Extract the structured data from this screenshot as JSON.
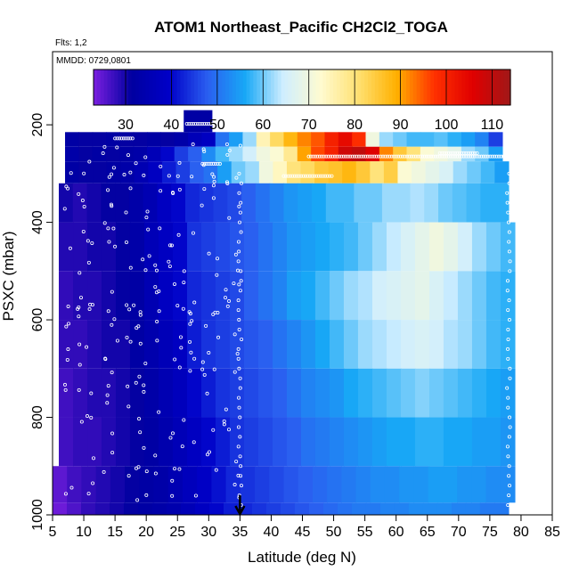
{
  "chart_data": {
    "type": "heatmap",
    "title": "ATOM1 Northeast_Pacific CH2Cl2_TOGA",
    "annotation_flights": "Flts: 1,2",
    "annotation_dates": "MMDD: 0729,0801",
    "xlabel": "Latitude (deg N)",
    "ylabel": "PSXC (mbar)",
    "xlim": [
      5,
      85
    ],
    "ylim": [
      1000,
      50
    ],
    "x_ticks": [
      "5",
      "10",
      "15",
      "20",
      "25",
      "30",
      "35",
      "40",
      "45",
      "50",
      "55",
      "60",
      "65",
      "70",
      "75",
      "80",
      "85"
    ],
    "y_ticks": [
      "200",
      "400",
      "600",
      "800",
      "1000"
    ],
    "colorbar": {
      "range": [
        23,
        114
      ],
      "tick_labels": [
        "30",
        "40",
        "50",
        "60",
        "70",
        "80",
        "90",
        "100",
        "110"
      ],
      "stops": [
        "#7b1fe0",
        "#0000a0",
        "#0000c8",
        "#2a5ef0",
        "#18a8f6",
        "#cfeeff",
        "#fffbd0",
        "#ffe070",
        "#ffb000",
        "#ff3000",
        "#e00000",
        "#a01818"
      ]
    },
    "marker_arrow_latitude": 35,
    "layers": [
      {
        "p": [
          170,
          215
        ],
        "lat": [
          26,
          30.5
        ],
        "values": [
          32
        ]
      },
      {
        "p": [
          215,
          245
        ],
        "lat": [
          7,
          77
        ],
        "values": [
          32,
          31,
          31,
          32,
          31,
          31,
          32,
          31,
          33,
          36,
          38,
          50,
          55,
          62,
          75,
          82,
          88,
          92,
          95,
          100,
          104,
          98,
          70,
          62,
          60,
          58,
          58,
          59,
          57,
          55,
          52,
          45
        ]
      },
      {
        "p": [
          245,
          275
        ],
        "lat": [
          7,
          77
        ],
        "values": [
          33,
          31,
          32,
          31,
          32,
          33,
          36,
          40,
          45,
          48,
          53,
          58,
          62,
          65,
          70,
          72,
          78,
          90,
          96,
          100,
          108,
          110,
          106,
          92,
          85,
          80,
          72,
          70,
          68,
          62,
          60,
          55
        ]
      },
      {
        "p": [
          275,
          320
        ],
        "lat": [
          7,
          78
        ],
        "values": [
          32,
          31,
          31,
          32,
          33,
          35,
          38,
          42,
          45,
          48,
          50,
          55,
          60,
          62,
          70,
          74,
          80,
          82,
          85,
          86,
          88,
          85,
          80,
          84,
          72,
          70,
          68,
          66,
          62,
          60,
          58,
          55
        ]
      },
      {
        "p": [
          320,
          400
        ],
        "lat": [
          6,
          78
        ],
        "values": [
          30,
          29,
          30,
          31,
          31,
          33,
          35,
          38,
          40,
          43,
          44,
          45,
          46,
          48,
          50,
          52,
          54,
          55,
          56,
          58,
          58,
          60,
          60,
          62,
          62,
          63,
          62,
          60,
          59,
          58,
          57,
          57
        ]
      },
      {
        "p": [
          400,
          500
        ],
        "lat": [
          6,
          79
        ],
        "values": [
          29,
          29,
          30,
          30,
          31,
          33,
          36,
          38,
          40,
          44,
          45,
          46,
          47,
          48,
          50,
          52,
          54,
          55,
          56,
          57,
          58,
          60,
          62,
          64,
          66,
          68,
          70,
          68,
          65,
          62,
          60,
          58
        ]
      },
      {
        "p": [
          500,
          600
        ],
        "lat": [
          6,
          79
        ],
        "values": [
          28,
          29,
          29,
          30,
          31,
          32,
          35,
          38,
          40,
          43,
          44,
          45,
          46,
          48,
          50,
          52,
          55,
          56,
          58,
          60,
          62,
          63,
          65,
          66,
          67,
          68,
          66,
          64,
          62,
          60,
          58,
          57
        ]
      },
      {
        "p": [
          600,
          700
        ],
        "lat": [
          6,
          79
        ],
        "values": [
          28,
          28,
          29,
          30,
          30,
          32,
          34,
          36,
          38,
          42,
          44,
          45,
          46,
          47,
          48,
          50,
          52,
          54,
          56,
          58,
          60,
          62,
          63,
          64,
          65,
          66,
          65,
          63,
          62,
          60,
          58,
          57
        ]
      },
      {
        "p": [
          700,
          800
        ],
        "lat": [
          6,
          79
        ],
        "values": [
          27,
          28,
          29,
          29,
          30,
          31,
          33,
          35,
          37,
          40,
          42,
          44,
          45,
          46,
          47,
          48,
          50,
          52,
          53,
          54,
          56,
          57,
          58,
          59,
          60,
          61,
          60,
          59,
          58,
          57,
          56,
          55
        ]
      },
      {
        "p": [
          800,
          900
        ],
        "lat": [
          6,
          79
        ],
        "values": [
          27,
          28,
          28,
          29,
          30,
          31,
          32,
          34,
          36,
          38,
          40,
          42,
          44,
          45,
          46,
          47,
          48,
          50,
          51,
          52,
          53,
          54,
          55,
          56,
          56,
          57,
          57,
          56,
          56,
          55,
          55,
          54
        ]
      },
      {
        "p": [
          900,
          975
        ],
        "lat": [
          5,
          79
        ],
        "values": [
          25,
          27,
          28,
          29,
          30,
          31,
          32,
          33,
          35,
          37,
          39,
          41,
          43,
          44,
          45,
          46,
          47,
          48,
          49,
          50,
          51,
          52,
          53,
          53,
          54,
          54,
          55,
          55,
          54,
          54,
          53,
          53
        ]
      },
      {
        "p": [
          975,
          1000
        ],
        "lat": [
          5,
          78
        ],
        "values": [
          24,
          26,
          28,
          29,
          30,
          31,
          32,
          33,
          34,
          36,
          38,
          40,
          42,
          43,
          44,
          45,
          46,
          47,
          48,
          49,
          50,
          51,
          51,
          52,
          52,
          53,
          53,
          53,
          52,
          52,
          51,
          51
        ]
      }
    ]
  }
}
